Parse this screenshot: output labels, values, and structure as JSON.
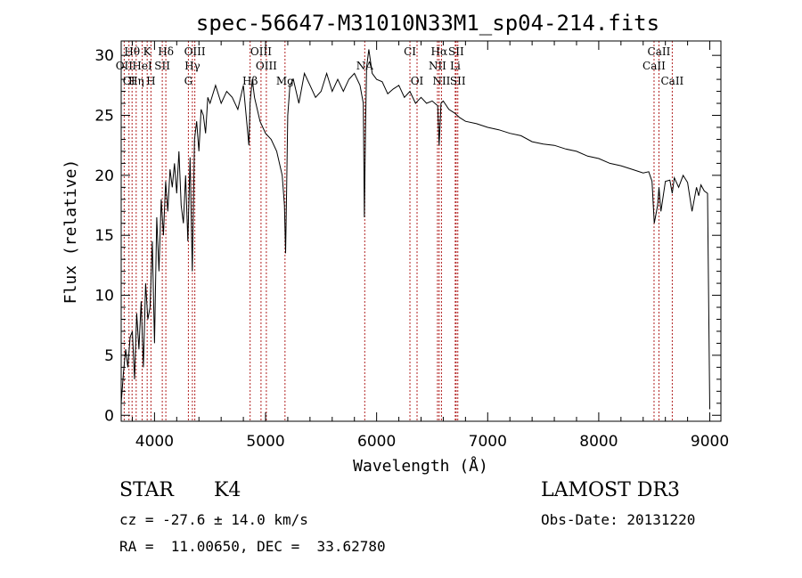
{
  "chart_data": {
    "type": "line",
    "title": "spec-56647-M31010N33M1_sp04-214.fits",
    "xlabel": "Wavelength (Å)",
    "ylabel": "Flux (relative)",
    "xlim": [
      3700,
      9100
    ],
    "ylim": [
      -0.5,
      31.2
    ],
    "xticks": [
      4000,
      5000,
      6000,
      7000,
      8000,
      9000
    ],
    "yticks": [
      0,
      5,
      10,
      15,
      20,
      25,
      30
    ],
    "grid": false,
    "legend": "none",
    "series": [
      {
        "name": "flux",
        "x": [
          3700,
          3720,
          3740,
          3760,
          3780,
          3800,
          3820,
          3840,
          3860,
          3880,
          3900,
          3920,
          3940,
          3960,
          3980,
          4000,
          4020,
          4040,
          4060,
          4080,
          4100,
          4120,
          4140,
          4160,
          4180,
          4200,
          4220,
          4240,
          4260,
          4280,
          4300,
          4320,
          4340,
          4360,
          4380,
          4400,
          4420,
          4440,
          4460,
          4480,
          4500,
          4550,
          4600,
          4650,
          4700,
          4750,
          4800,
          4850,
          4860,
          4880,
          4900,
          4950,
          5000,
          5050,
          5100,
          5150,
          5170,
          5180,
          5190,
          5200,
          5220,
          5250,
          5300,
          5350,
          5400,
          5450,
          5500,
          5550,
          5600,
          5650,
          5700,
          5750,
          5800,
          5850,
          5880,
          5890,
          5900,
          5910,
          5930,
          5960,
          6000,
          6050,
          6100,
          6150,
          6200,
          6250,
          6300,
          6350,
          6400,
          6450,
          6500,
          6550,
          6563,
          6580,
          6600,
          6650,
          6700,
          6750,
          6800,
          6900,
          7000,
          7100,
          7200,
          7300,
          7400,
          7500,
          7600,
          7700,
          7800,
          7900,
          8000,
          8100,
          8200,
          8300,
          8400,
          8450,
          8480,
          8500,
          8530,
          8542,
          8560,
          8600,
          8640,
          8662,
          8680,
          8720,
          8760,
          8800,
          8840,
          8880,
          8900,
          8920,
          8950,
          8980,
          9000
        ],
        "y": [
          1.0,
          3.5,
          5.5,
          4.0,
          6.5,
          7.0,
          3.0,
          8.5,
          5.5,
          9.5,
          4.0,
          11.0,
          8.0,
          9.0,
          14.5,
          6.0,
          16.5,
          12.0,
          18.0,
          15.0,
          19.5,
          17.0,
          20.5,
          19.0,
          21.0,
          18.5,
          22.0,
          17.5,
          16.0,
          20.0,
          14.5,
          21.5,
          12.0,
          23.0,
          24.5,
          22.0,
          25.5,
          25.0,
          23.5,
          26.5,
          26.0,
          27.5,
          26.0,
          27.0,
          26.5,
          25.5,
          27.5,
          22.5,
          26.0,
          28.0,
          26.5,
          24.5,
          23.5,
          23.0,
          22.0,
          20.0,
          17.5,
          13.5,
          19.0,
          25.0,
          27.5,
          28.0,
          26.0,
          28.5,
          27.5,
          26.5,
          27.0,
          28.5,
          27.0,
          28.0,
          27.0,
          28.0,
          28.5,
          27.5,
          26.0,
          16.5,
          24.0,
          29.0,
          30.5,
          28.5,
          28.0,
          27.8,
          26.8,
          27.2,
          27.5,
          26.5,
          27.0,
          26.0,
          26.5,
          26.0,
          26.2,
          25.8,
          22.5,
          26.0,
          26.2,
          25.5,
          25.2,
          24.8,
          24.5,
          24.3,
          24.0,
          23.8,
          23.5,
          23.3,
          22.8,
          22.6,
          22.5,
          22.2,
          22.0,
          21.6,
          21.4,
          21.0,
          20.8,
          20.5,
          20.2,
          20.3,
          19.5,
          16.0,
          17.5,
          19.0,
          17.0,
          19.5,
          19.6,
          18.5,
          19.8,
          19.0,
          20.0,
          19.4,
          17.0,
          19.0,
          18.3,
          19.2,
          18.7,
          18.5,
          0.5
        ]
      }
    ],
    "lines": [
      {
        "label": "Hθ",
        "x": 3798,
        "row": 1
      },
      {
        "label": "K",
        "x": 3934,
        "row": 1
      },
      {
        "label": "Hδ",
        "x": 4102,
        "row": 1
      },
      {
        "label": "OII",
        "x": 3727,
        "row": 2
      },
      {
        "label": "HeI",
        "x": 3889,
        "row": 2
      },
      {
        "label": "SII",
        "x": 4070,
        "row": 2
      },
      {
        "label": "OIII",
        "x": 4363,
        "row": 1
      },
      {
        "label": "Hγ",
        "x": 4341,
        "row": 2
      },
      {
        "label": "OIII",
        "x": 4959,
        "row": 1
      },
      {
        "label": "OIII",
        "x": 5007,
        "row": 2
      },
      {
        "label": "CI",
        "x": 3770,
        "row": 3
      },
      {
        "label": "Hη",
        "x": 3835,
        "row": 3
      },
      {
        "label": "H",
        "x": 3968,
        "row": 3
      },
      {
        "label": "G",
        "x": 4305,
        "row": 3
      },
      {
        "label": "Hβ",
        "x": 4861,
        "row": 3
      },
      {
        "label": "Mg",
        "x": 5175,
        "row": 3
      },
      {
        "label": "NA",
        "x": 5893,
        "row": 2
      },
      {
        "label": "CI",
        "x": 6300,
        "row": 1
      },
      {
        "label": "OI",
        "x": 6364,
        "row": 3
      },
      {
        "label": "Hα",
        "x": 6563,
        "row": 1
      },
      {
        "label": "SII",
        "x": 6716,
        "row": 1
      },
      {
        "label": "NII",
        "x": 6548,
        "row": 2
      },
      {
        "label": "Li",
        "x": 6708,
        "row": 2
      },
      {
        "label": "NII",
        "x": 6584,
        "row": 3
      },
      {
        "label": "SII",
        "x": 6731,
        "row": 3
      },
      {
        "label": "CaII",
        "x": 8542,
        "row": 1
      },
      {
        "label": "CaII",
        "x": 8498,
        "row": 2
      },
      {
        "label": "CaII",
        "x": 8662,
        "row": 3
      }
    ]
  },
  "info": {
    "class_label": "STAR",
    "subclass": "K4",
    "survey": "LAMOST DR3",
    "cz": "cz = -27.6 ± 14.0 km/s",
    "obs_date": "Obs-Date: 20131220",
    "coords": "RA =  11.00650, DEC =  33.62780"
  },
  "colors": {
    "axis": "#000000",
    "spectrum": "#000000",
    "marker": "#b22222"
  }
}
